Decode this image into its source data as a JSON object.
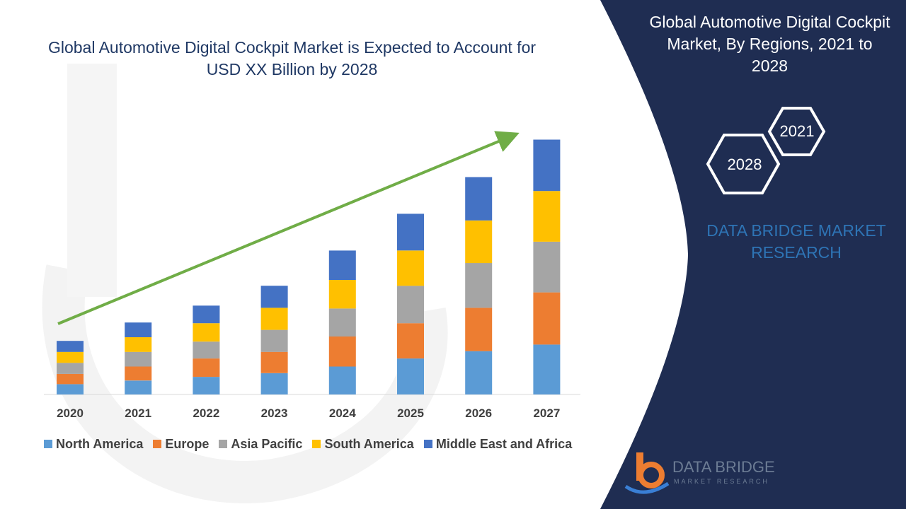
{
  "title": "Global Automotive Digital Cockpit Market is Expected to Account for USD XX Billion by 2028",
  "side_panel": {
    "title": "Global Automotive Digital Cockpit Market, By Regions, 2021 to 2028",
    "hex_labels": [
      "2021",
      "2028"
    ],
    "brand_text": "DATA BRIDGE MARKET RESEARCH",
    "logo_text": "DATA BRIDGE",
    "logo_subtext": "MARKET RESEARCH",
    "panel_color": "#1f2d52"
  },
  "chart_data": {
    "type": "bar",
    "stacked": true,
    "categories": [
      "2020",
      "2021",
      "2022",
      "2023",
      "2024",
      "2025",
      "2026",
      "2027"
    ],
    "series": [
      {
        "name": "North America",
        "color": "#5b9bd5",
        "values": [
          14,
          19,
          24,
          29,
          38,
          49,
          59,
          68
        ]
      },
      {
        "name": "Europe",
        "color": "#ed7d31",
        "values": [
          14,
          19,
          25,
          29,
          41,
          48,
          59,
          71
        ]
      },
      {
        "name": "Asia Pacific",
        "color": "#a5a5a5",
        "values": [
          15,
          20,
          23,
          30,
          38,
          51,
          61,
          69
        ]
      },
      {
        "name": "South America",
        "color": "#ffc000",
        "values": [
          15,
          20,
          25,
          30,
          39,
          48,
          58,
          69
        ]
      },
      {
        "name": "Middle East and Africa",
        "color": "#4472c4",
        "values": [
          15,
          20,
          24,
          30,
          40,
          50,
          59,
          70
        ]
      }
    ],
    "ylim": [
      0,
      360
    ],
    "legend_position": "bottom",
    "grid": false,
    "trend_arrow_color": "#70ad47"
  }
}
